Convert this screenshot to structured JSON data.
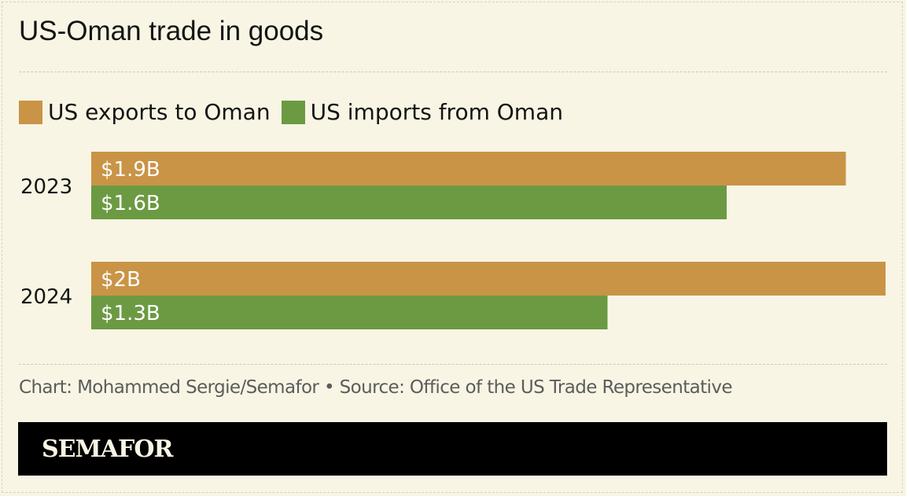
{
  "title": "US-Oman trade in goods",
  "colors": {
    "exports": "#c99446",
    "imports": "#6c9a43",
    "background": "#f8f5e4"
  },
  "legend": {
    "exports_label": "US exports to Oman",
    "imports_label": "US imports from Oman"
  },
  "chart_data": {
    "type": "bar",
    "orientation": "horizontal",
    "categories": [
      "2023",
      "2024"
    ],
    "series": [
      {
        "name": "US exports to Oman",
        "values": [
          1.9,
          2.0
        ],
        "labels": [
          "$1.9B",
          "$2B"
        ]
      },
      {
        "name": "US imports from Oman",
        "values": [
          1.6,
          1.3
        ],
        "labels": [
          "$1.6B",
          "$1.3B"
        ]
      }
    ],
    "xlim": [
      0,
      2.0
    ],
    "grid": false,
    "legend_position": "top-left"
  },
  "source": "Chart: Mohammed Sergie/Semafor • Source: Office of the US Trade Representative",
  "brand": "SEMAFOR"
}
